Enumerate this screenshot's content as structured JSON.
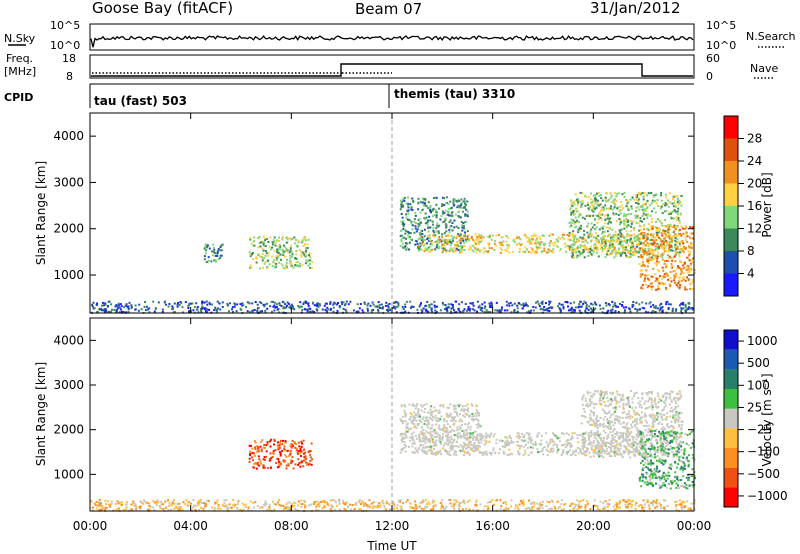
{
  "header": {
    "station": "Goose Bay (fitACF)",
    "beam": "Beam 07",
    "date": "31/Jan/2012"
  },
  "panels": {
    "nsky": {
      "left_label": "N.Sky",
      "left_ticks": [
        "10^5",
        "10^0"
      ],
      "right_ticks": [
        "10^5",
        "10^0"
      ],
      "right_label": "N.Search"
    },
    "freq": {
      "left_label_1": "Freq.",
      "left_label_2": "[MHz]",
      "left_ticks": [
        "18",
        "8"
      ],
      "right_ticks": [
        "60",
        "0"
      ],
      "right_label": "Nave"
    },
    "cpid": {
      "label": "CPID",
      "mode_1": "tau (fast) 503",
      "mode_2": "themis (tau) 3310"
    }
  },
  "colors": {
    "power": [
      "#1a1aff",
      "#1f4fae",
      "#3c8a5c",
      "#7fd87a",
      "#ffd040",
      "#f09020",
      "#e05010",
      "#ff0000"
    ],
    "velocity": [
      "#ff0000",
      "#f05010",
      "#ff9020",
      "#ffc040",
      "#c8c8c0",
      "#3fbf3f",
      "#2a7f6a",
      "#1a5ab0",
      "#1010cc"
    ],
    "ground_scatter": "#c8c8c0"
  },
  "chart_data": [
    {
      "type": "heatmap",
      "title": "",
      "xlabel": "",
      "ylabel": "Slant Range [km]",
      "x_ticks": [
        "00:00",
        "04:00",
        "08:00",
        "12:00",
        "16:00",
        "20:00",
        "00:00"
      ],
      "xlim_hours": [
        0,
        24
      ],
      "y_ticks": [
        1000,
        2000,
        3000,
        4000
      ],
      "ylim_km": [
        180,
        4500
      ],
      "colorbar": {
        "label": "Power [dB]",
        "ticks": [
          "4",
          "8",
          "12",
          "16",
          "20",
          "24",
          "28"
        ],
        "range": [
          0,
          30
        ]
      },
      "regions": [
        {
          "t": [
            4.5,
            5.3
          ],
          "r": [
            1300,
            1700
          ],
          "level": 2
        },
        {
          "t": [
            6.3,
            8.8
          ],
          "r": [
            1150,
            1850
          ],
          "level": 3
        },
        {
          "t": [
            12.3,
            15.0
          ],
          "r": [
            1550,
            2700
          ],
          "level": 2
        },
        {
          "t": [
            13.0,
            22.0
          ],
          "r": [
            1500,
            1900
          ],
          "level": 4
        },
        {
          "t": [
            19.0,
            23.5
          ],
          "r": [
            1400,
            2800
          ],
          "level": 3
        },
        {
          "t": [
            21.8,
            24.0
          ],
          "r": [
            700,
            2100
          ],
          "level": 5
        },
        {
          "t": [
            0.0,
            24.0
          ],
          "r": [
            200,
            450
          ],
          "level": 1
        }
      ]
    },
    {
      "type": "heatmap",
      "title": "",
      "xlabel": "Time UT",
      "ylabel": "Slant Range [km]",
      "x_ticks": [
        "00:00",
        "04:00",
        "08:00",
        "12:00",
        "16:00",
        "20:00",
        "00:00"
      ],
      "xlim_hours": [
        0,
        24
      ],
      "y_ticks": [
        1000,
        2000,
        3000,
        4000
      ],
      "ylim_km": [
        180,
        4500
      ],
      "colorbar": {
        "label": "Velocity [m s⁻¹]",
        "ticks": [
          "1000",
          "500",
          "100",
          "25",
          "−25",
          "−100",
          "−500",
          "−1000"
        ],
        "range": [
          -1000,
          1000
        ]
      },
      "regions": [
        {
          "t": [
            6.3,
            8.8
          ],
          "r": [
            1150,
            1800
          ],
          "level": 1
        },
        {
          "t": [
            12.3,
            15.5
          ],
          "r": [
            1500,
            2600
          ],
          "level": 4
        },
        {
          "t": [
            13.0,
            22.0
          ],
          "r": [
            1450,
            1950
          ],
          "level": 4
        },
        {
          "t": [
            19.5,
            23.5
          ],
          "r": [
            1400,
            2900
          ],
          "level": 4
        },
        {
          "t": [
            21.8,
            24.0
          ],
          "r": [
            700,
            2000
          ],
          "level": 5
        },
        {
          "t": [
            0.0,
            24.0
          ],
          "r": [
            200,
            450
          ],
          "level": 3
        }
      ]
    }
  ]
}
